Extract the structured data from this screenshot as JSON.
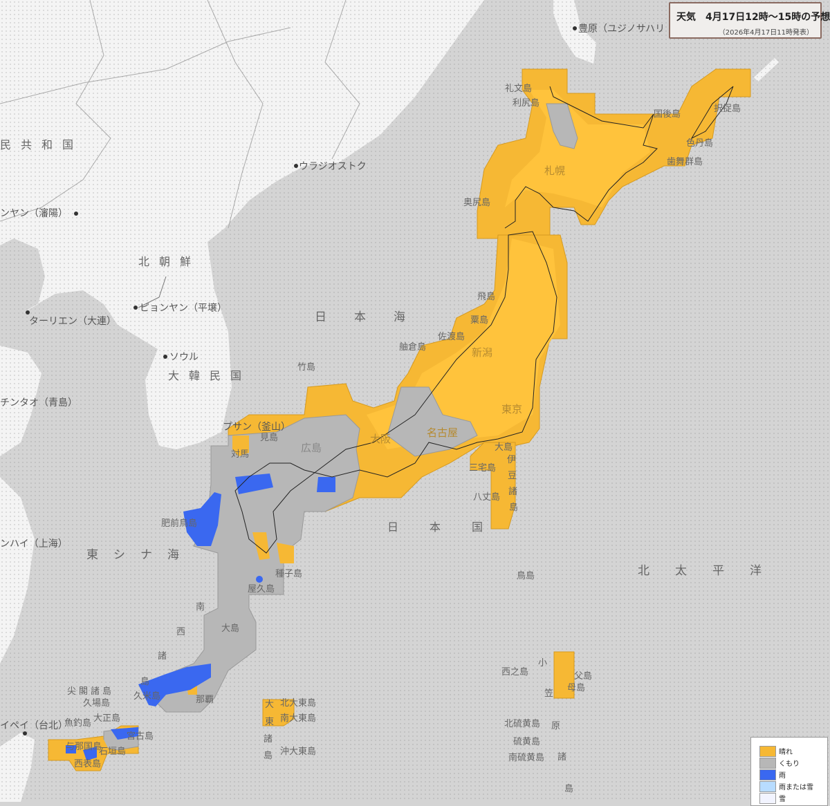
{
  "title": {
    "main": "天気　4月17日12時〜15時の予想",
    "issued": "（2026年4月17日11時発表）"
  },
  "colors": {
    "sea": "#d4d4d4",
    "land_foreign": "#f4f4f4",
    "sunny": "#f6b834",
    "cloudy": "#b7b7b7",
    "rain": "#3a68f0",
    "rain_or_snow": "#b8dcff",
    "snow": "#f2f4ff"
  },
  "legend": [
    {
      "label": "晴れ",
      "color": "#f6b834"
    },
    {
      "label": "くもり",
      "color": "#b7b7b7"
    },
    {
      "label": "雨",
      "color": "#3a68f0"
    },
    {
      "label": "雨または雪",
      "color": "#b8dcff"
    },
    {
      "label": "雪",
      "color": "#f2f4ff"
    }
  ],
  "labels": {
    "china": "民共和国",
    "vladivostok": "ウラジオストク",
    "shenyang": "ンヤン（瀋陽）",
    "north_korea": "北朝鮮",
    "pyongyang": "ピョンヤン（平壌）",
    "dalian": "ターリエン（大連）",
    "seoul": "ソウル",
    "south_korea": "大韓民国",
    "qingdao": "チンタオ（青島）",
    "busan": "プサン（釜山）",
    "sea_of_japan": "日本海",
    "takeshima": "竹島",
    "east_china_sea": "東シナ海",
    "shanghai": "ンハイ（上海）",
    "japan": "日本国",
    "north_pacific": "北太平洋",
    "yuzhno": "豊原（ユジノサハリ",
    "rebun": "礼文島",
    "rishiri": "利尻島",
    "kunashiri": "国後島",
    "etorofu": "択捉島",
    "shikotan": "色丹島",
    "habomai": "歯舞群島",
    "sapporo": "札幌",
    "okushiri": "奥尻島",
    "tobishima": "飛島",
    "awashima": "粟島",
    "sado": "佐渡島",
    "hegura": "舳倉島",
    "niigata": "新潟",
    "tokyo": "東京",
    "nagoya": "名古屋",
    "osaka": "大阪",
    "hiroshima": "広島",
    "mishima": "見島",
    "tsushima": "対馬",
    "hizen_torishima": "肥前鳥島",
    "izu_oshima": "大島",
    "miyake": "三宅島",
    "hachijo": "八丈島",
    "izu_chain": [
      "伊",
      "豆",
      "諸",
      "島"
    ],
    "torishima": "鳥島",
    "tanegashima": "種子島",
    "yakushima": "屋久島",
    "nansei": [
      "南",
      "西",
      "諸",
      "島"
    ],
    "amami": "大島",
    "kume": "久米島",
    "naha": "那覇",
    "senkaku": "尖閣諸島",
    "kuba": "久場島",
    "taisho": "大正島",
    "uotsuri": "魚釣島",
    "taipei": "イペイ（台北）",
    "miyako": "宮古島",
    "yonaguni": "与那国島",
    "ishigaki": "石垣島",
    "iriomote": "西表島",
    "kitadaito": "北大東島",
    "minamidaito": "南大東島",
    "daito": [
      "大",
      "東",
      "諸",
      "島"
    ],
    "okidaito": "沖大東島",
    "nishinoshima": "西之島",
    "ogasawara": [
      "小",
      "笠",
      "原",
      "諸",
      "島"
    ],
    "chichijima": "父島",
    "hahajima": "母島",
    "kita_iwo": "北硫黄島",
    "iwo": "硫黄島",
    "minami_iwo": "南硫黄島"
  }
}
